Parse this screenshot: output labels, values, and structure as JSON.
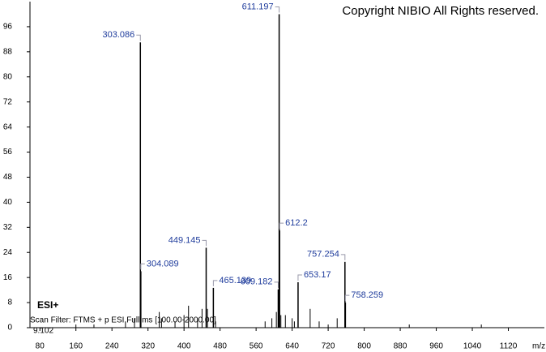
{
  "chart_data": {
    "type": "bar",
    "title": "Copyright NIBIO All Rights reserved.",
    "ionization": "ESI+",
    "scan_filter": "Scan Filter: FTMS + p ESI Full ms [100.00-2000.00]",
    "retention": "9.102",
    "x_label": "m/z",
    "color": "#000000",
    "label_color": "#1f3c9c",
    "x": [
      303.086,
      304.089,
      449.145,
      465.139,
      609.182,
      611.197,
      612.2,
      653.17,
      757.254,
      758.259
    ],
    "values": [
      91,
      18,
      25.5,
      12.7,
      12.2,
      100,
      31,
      14.5,
      21,
      8
    ],
    "minor_peaks": {
      "x": [
        160,
        200,
        270,
        290,
        345,
        350,
        380,
        400,
        410,
        430,
        440,
        452,
        470,
        580,
        595,
        605,
        615,
        625,
        640,
        645,
        680,
        700,
        720,
        740,
        900,
        1060
      ],
      "values": [
        1,
        1,
        2,
        3,
        5,
        3,
        2,
        4,
        7,
        3,
        6,
        6,
        2,
        2,
        3,
        5,
        4,
        4,
        3,
        2,
        6,
        2,
        1,
        3,
        1,
        1
      ]
    },
    "xlim": [
      58,
      1200
    ],
    "ylim": [
      0,
      104
    ],
    "xticks": [
      80,
      160,
      240,
      320,
      400,
      480,
      560,
      640,
      720,
      800,
      880,
      960,
      1040,
      1120
    ],
    "yticks": [
      0,
      8,
      16,
      24,
      32,
      40,
      48,
      56,
      64,
      72,
      80,
      88,
      96
    ]
  }
}
